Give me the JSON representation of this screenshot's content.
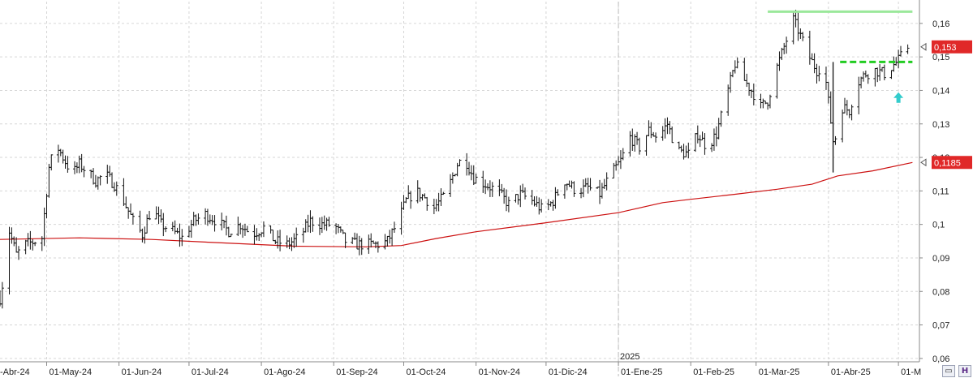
{
  "chart_data": {
    "type": "ohlc",
    "y_ticks": [
      "0,16",
      "0,15",
      "0,14",
      "0,13",
      "0,12",
      "0,11",
      "0,1",
      "0,09",
      "0,08",
      "0,07",
      "0,06"
    ],
    "y_tick_values": [
      0.16,
      0.15,
      0.14,
      0.13,
      0.12,
      0.11,
      0.1,
      0.09,
      0.08,
      0.07,
      0.06
    ],
    "ylim": [
      0.059,
      0.1665
    ],
    "x_labels": [
      {
        "text": "-Abr-24",
        "date": "2024-04-01"
      },
      {
        "text": "01-May-24",
        "date": "2024-05-01"
      },
      {
        "text": "01-Jun-24",
        "date": "2024-06-01"
      },
      {
        "text": "01-Jul-24",
        "date": "2024-07-01"
      },
      {
        "text": "01-Ago-24",
        "date": "2024-08-01"
      },
      {
        "text": "01-Sep-24",
        "date": "2024-09-01"
      },
      {
        "text": "01-Oct-24",
        "date": "2024-10-01"
      },
      {
        "text": "01-Nov-24",
        "date": "2024-11-01"
      },
      {
        "text": "01-Dic-24",
        "date": "2024-12-01"
      },
      {
        "text": "01-Ene-25",
        "date": "2025-01-01"
      },
      {
        "text": "01-Feb-25",
        "date": "2025-02-01"
      },
      {
        "text": "01-Mar-25",
        "date": "2025-03-01"
      },
      {
        "text": "01-Abr-25",
        "date": "2025-04-01"
      },
      {
        "text": "01-M",
        "date": "2025-05-01"
      }
    ],
    "xlim": [
      "2024-04-11",
      "2025-05-10"
    ],
    "year_label": "2025",
    "year_separator_date": "2025-01-01",
    "price_anchors": [
      [
        "2024-04-11",
        0.078
      ],
      [
        "2024-04-13",
        0.086
      ],
      [
        "2024-04-15",
        0.098
      ],
      [
        "2024-04-18",
        0.091
      ],
      [
        "2024-04-22",
        0.094
      ],
      [
        "2024-04-26",
        0.095
      ],
      [
        "2024-04-29",
        0.096
      ],
      [
        "2024-05-02",
        0.117
      ],
      [
        "2024-05-05",
        0.124
      ],
      [
        "2024-05-08",
        0.12
      ],
      [
        "2024-05-12",
        0.115
      ],
      [
        "2024-05-15",
        0.118
      ],
      [
        "2024-05-18",
        0.116
      ],
      [
        "2024-05-22",
        0.113
      ],
      [
        "2024-05-26",
        0.115
      ],
      [
        "2024-05-30",
        0.112
      ],
      [
        "2024-06-03",
        0.107
      ],
      [
        "2024-06-07",
        0.101
      ],
      [
        "2024-06-11",
        0.097
      ],
      [
        "2024-06-15",
        0.105
      ],
      [
        "2024-06-19",
        0.1
      ],
      [
        "2024-06-24",
        0.098
      ],
      [
        "2024-06-28",
        0.096
      ],
      [
        "2024-07-03",
        0.101
      ],
      [
        "2024-07-08",
        0.103
      ],
      [
        "2024-07-13",
        0.101
      ],
      [
        "2024-07-18",
        0.098
      ],
      [
        "2024-07-23",
        0.1
      ],
      [
        "2024-07-28",
        0.097
      ],
      [
        "2024-08-02",
        0.099
      ],
      [
        "2024-08-07",
        0.095
      ],
      [
        "2024-08-12",
        0.094
      ],
      [
        "2024-08-17",
        0.096
      ],
      [
        "2024-08-22",
        0.101
      ],
      [
        "2024-08-27",
        0.1
      ],
      [
        "2024-09-01",
        0.1
      ],
      [
        "2024-09-06",
        0.095
      ],
      [
        "2024-09-11",
        0.094
      ],
      [
        "2024-09-16",
        0.094
      ],
      [
        "2024-09-21",
        0.094
      ],
      [
        "2024-09-24",
        0.095
      ],
      [
        "2024-09-28",
        0.1
      ],
      [
        "2024-10-02",
        0.107
      ],
      [
        "2024-10-06",
        0.11
      ],
      [
        "2024-10-10",
        0.108
      ],
      [
        "2024-10-14",
        0.105
      ],
      [
        "2024-10-19",
        0.109
      ],
      [
        "2024-10-24",
        0.118
      ],
      [
        "2024-10-27",
        0.12
      ],
      [
        "2024-10-31",
        0.114
      ],
      [
        "2024-11-05",
        0.112
      ],
      [
        "2024-11-10",
        0.11
      ],
      [
        "2024-11-15",
        0.106
      ],
      [
        "2024-11-20",
        0.109
      ],
      [
        "2024-11-25",
        0.107
      ],
      [
        "2024-11-30",
        0.104
      ],
      [
        "2024-12-04",
        0.107
      ],
      [
        "2024-12-09",
        0.113
      ],
      [
        "2024-12-14",
        0.11
      ],
      [
        "2024-12-19",
        0.111
      ],
      [
        "2024-12-24",
        0.109
      ],
      [
        "2024-12-28",
        0.114
      ],
      [
        "2025-01-02",
        0.119
      ],
      [
        "2025-01-06",
        0.126
      ],
      [
        "2025-01-10",
        0.123
      ],
      [
        "2025-01-14",
        0.128
      ],
      [
        "2025-01-18",
        0.126
      ],
      [
        "2025-01-22",
        0.13
      ],
      [
        "2025-01-26",
        0.122
      ],
      [
        "2025-01-31",
        0.121
      ],
      [
        "2025-02-04",
        0.127
      ],
      [
        "2025-02-08",
        0.123
      ],
      [
        "2025-02-12",
        0.127
      ],
      [
        "2025-02-17",
        0.14
      ],
      [
        "2025-02-20",
        0.148
      ],
      [
        "2025-02-24",
        0.143
      ],
      [
        "2025-02-28",
        0.139
      ],
      [
        "2025-03-03",
        0.135
      ],
      [
        "2025-03-06",
        0.137
      ],
      [
        "2025-03-10",
        0.147
      ],
      [
        "2025-03-14",
        0.155
      ],
      [
        "2025-03-17",
        0.161
      ],
      [
        "2025-03-19",
        0.158
      ],
      [
        "2025-03-23",
        0.151
      ],
      [
        "2025-03-27",
        0.146
      ],
      [
        "2025-03-30",
        0.148
      ],
      [
        "2025-04-03",
        0.125
      ],
      [
        "2025-04-04",
        0.126
      ],
      [
        "2025-04-07",
        0.135
      ],
      [
        "2025-04-10",
        0.134
      ],
      [
        "2025-04-13",
        0.142
      ],
      [
        "2025-04-17",
        0.145
      ],
      [
        "2025-04-21",
        0.146
      ],
      [
        "2025-04-25",
        0.145
      ],
      [
        "2025-04-28",
        0.147
      ],
      [
        "2025-05-01",
        0.149
      ],
      [
        "2025-05-05",
        0.153
      ]
    ],
    "moving_average": [
      [
        "2024-04-11",
        0.0955
      ],
      [
        "2024-05-15",
        0.096
      ],
      [
        "2024-06-15",
        0.0955
      ],
      [
        "2024-07-15",
        0.0945
      ],
      [
        "2024-08-15",
        0.0935
      ],
      [
        "2024-09-15",
        0.0933
      ],
      [
        "2024-09-30",
        0.0937
      ],
      [
        "2024-10-15",
        0.0958
      ],
      [
        "2024-11-01",
        0.0978
      ],
      [
        "2024-12-01",
        0.1005
      ],
      [
        "2025-01-01",
        0.1035
      ],
      [
        "2025-01-20",
        0.1065
      ],
      [
        "2025-02-01",
        0.1075
      ],
      [
        "2025-02-20",
        0.109
      ],
      [
        "2025-03-10",
        0.1105
      ],
      [
        "2025-03-25",
        0.112
      ],
      [
        "2025-04-05",
        0.1145
      ],
      [
        "2025-04-20",
        0.116
      ],
      [
        "2025-05-07",
        0.1185
      ]
    ],
    "resistance_line": {
      "from": "2025-03-06",
      "to": "2025-05-07",
      "value": 0.1635,
      "color": "#9be89b"
    },
    "dashed_line": {
      "from": "2025-04-06",
      "to": "2025-05-07",
      "value": 0.1485,
      "color": "#22cc22"
    },
    "arrow_marker": {
      "date": "2025-05-01",
      "value": 0.1375,
      "color": "#33cccc"
    },
    "last_price": {
      "label": "0,153",
      "value": 0.153,
      "color": "#e02828"
    },
    "ma_last": {
      "label": "0,1185",
      "value": 0.1185,
      "color": "#e02828"
    },
    "colors": {
      "bars": "#111111",
      "moving_average": "#cc1111",
      "grid": "#d6d6d6",
      "axis": "#888888"
    },
    "grid": true
  },
  "toolbar": {
    "view_icon": "chart-view-icon",
    "save_icon": "save-icon",
    "view_glyph": "▭",
    "save_glyph": "H"
  }
}
